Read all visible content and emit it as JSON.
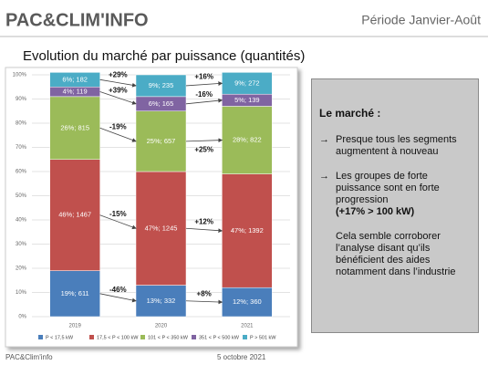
{
  "header": {
    "logo": "PAC&CLIM'INFO",
    "period": "Période Janvier-Août"
  },
  "chart_data": {
    "type": "stacked_bar_100",
    "title": "Evolution du marché par puissance (quantités)",
    "categories": [
      "2019",
      "2020",
      "2021"
    ],
    "series": [
      {
        "name": "P < 17,5 kW",
        "color": "#4a7ebb",
        "values": [
          19,
          13,
          12
        ],
        "value_labels": [
          "19%; 611",
          "13%; 332",
          "12%; 360"
        ]
      },
      {
        "name": "17,5 < P < 100 kW",
        "color": "#c0504d",
        "values": [
          46,
          47,
          47
        ],
        "value_labels": [
          "46%; 1467",
          "47%; 1245",
          "47%; 1392"
        ]
      },
      {
        "name": "101 < P < 350 kW",
        "color": "#9bbb59",
        "values": [
          26,
          25,
          28
        ],
        "value_labels": [
          "26%; 815",
          "25%; 657",
          "28%; 822"
        ]
      },
      {
        "name": "351 < P < 500 kW",
        "color": "#8064a2",
        "values": [
          4,
          6,
          5
        ],
        "value_labels": [
          "4%; 119",
          "6%; 165",
          "5%; 139"
        ]
      },
      {
        "name": "P > 501 kW",
        "color": "#4bacc6",
        "values": [
          6,
          9,
          9
        ],
        "value_labels": [
          "6%; 182",
          "9%; 235",
          "9%; 272"
        ]
      }
    ],
    "ylim": [
      0,
      100
    ],
    "yticks": [
      {
        "value": 0,
        "label": "0%"
      },
      {
        "value": 10,
        "label": "10%"
      },
      {
        "value": 20,
        "label": "20%"
      },
      {
        "value": 30,
        "label": "30%"
      },
      {
        "value": 40,
        "label": "40%"
      },
      {
        "value": 50,
        "label": "50%"
      },
      {
        "value": 60,
        "label": "60%"
      },
      {
        "value": 70,
        "label": "70%"
      },
      {
        "value": 80,
        "label": "80%"
      },
      {
        "value": 90,
        "label": "90%"
      },
      {
        "value": 100,
        "label": "100%"
      }
    ],
    "grid": true,
    "legend": "bottom",
    "annotations": [
      "+29%",
      "+16%",
      "+39%",
      "-16%",
      "-19%",
      "+25%",
      "-15%",
      "+12%",
      "-46%",
      "+8%"
    ]
  },
  "panel": {
    "heading": "Le marché :",
    "bullets": [
      "Presque tous les segments augmentent à nouveau",
      "Les groupes de forte puissance sont en forte progression"
    ],
    "emphasis": "(+17% > 100 kW)",
    "note": "Cela semble corroborer l’analyse disant qu’ils bénéficient des aides notamment dans l’industrie"
  },
  "footer": {
    "left": "PAC&Clim'info",
    "date": "5 octobre 2021"
  }
}
